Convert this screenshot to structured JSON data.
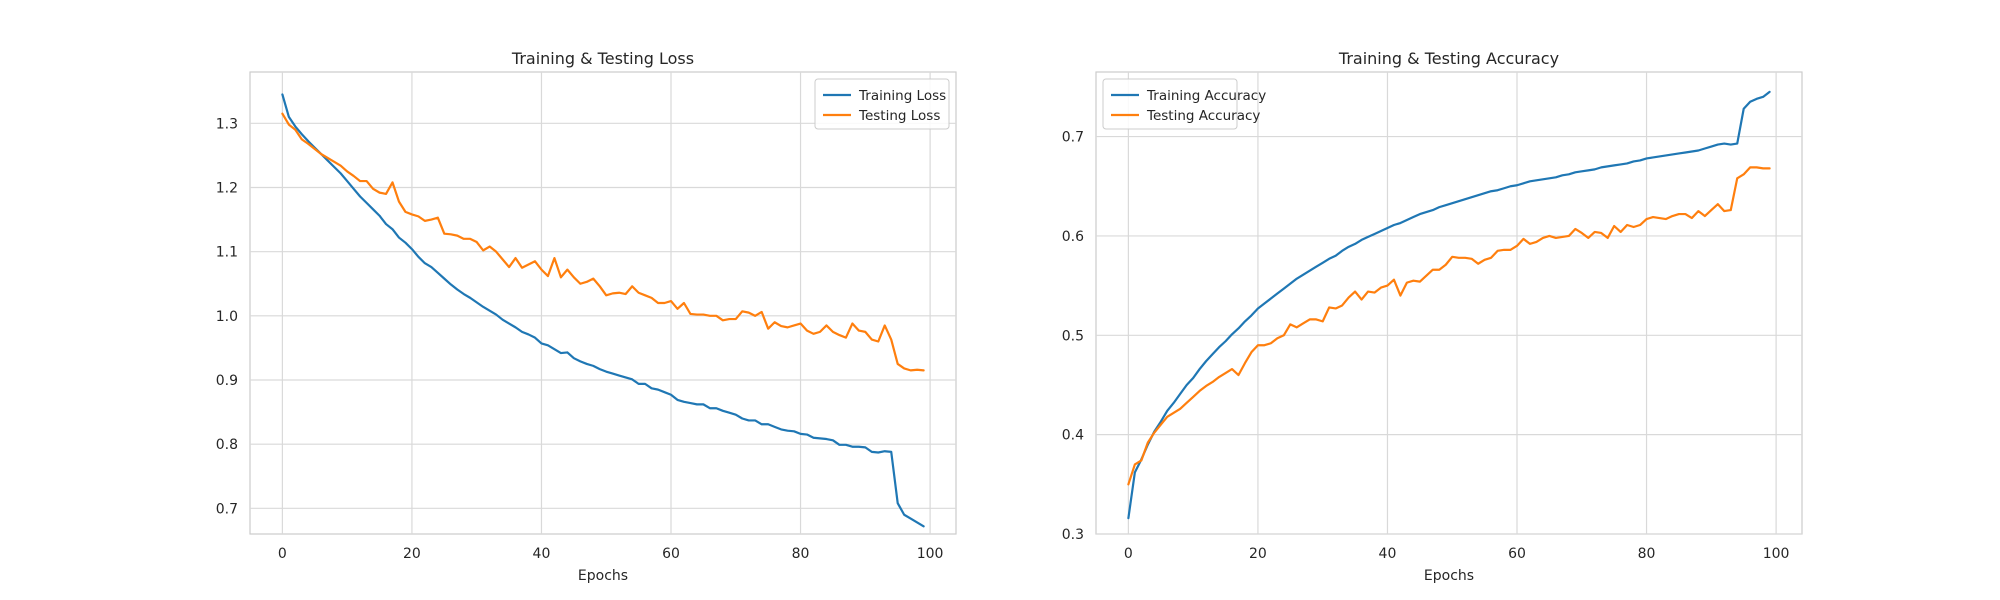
{
  "chart_data": [
    {
      "type": "line",
      "title": "Training & Testing Loss",
      "xlabel": "Epochs",
      "ylabel": "",
      "xlim": [
        -5,
        104
      ],
      "ylim": [
        0.66,
        1.38
      ],
      "xticks": [
        0,
        20,
        40,
        60,
        80,
        100
      ],
      "yticks": [
        0.7,
        0.8,
        0.9,
        1.0,
        1.1,
        1.2,
        1.3
      ],
      "grid": true,
      "legend_position": "top-right",
      "series": [
        {
          "name": "Training Loss",
          "color": "#1f77b4",
          "x": [
            0,
            1,
            2,
            3,
            4,
            5,
            6,
            7,
            8,
            9,
            10,
            11,
            12,
            13,
            14,
            15,
            16,
            17,
            18,
            19,
            20,
            21,
            22,
            23,
            24,
            25,
            26,
            27,
            28,
            29,
            30,
            31,
            32,
            33,
            34,
            35,
            36,
            37,
            38,
            39,
            40,
            41,
            42,
            43,
            44,
            45,
            46,
            47,
            48,
            49,
            50,
            51,
            52,
            53,
            54,
            55,
            56,
            57,
            58,
            59,
            60,
            61,
            62,
            63,
            64,
            65,
            66,
            67,
            68,
            69,
            70,
            71,
            72,
            73,
            74,
            75,
            76,
            77,
            78,
            79,
            80,
            81,
            82,
            83,
            84,
            85,
            86,
            87,
            88,
            89,
            90,
            91,
            92,
            93,
            94,
            95,
            96,
            97,
            98,
            99
          ],
          "values": [
            1.345,
            1.31,
            1.295,
            1.283,
            1.272,
            1.262,
            1.252,
            1.242,
            1.232,
            1.222,
            1.21,
            1.198,
            1.186,
            1.176,
            1.166,
            1.156,
            1.143,
            1.135,
            1.122,
            1.114,
            1.104,
            1.092,
            1.082,
            1.076,
            1.067,
            1.058,
            1.049,
            1.041,
            1.034,
            1.028,
            1.021,
            1.014,
            1.008,
            1.002,
            0.994,
            0.988,
            0.982,
            0.975,
            0.971,
            0.966,
            0.957,
            0.954,
            0.948,
            0.942,
            0.943,
            0.934,
            0.929,
            0.925,
            0.922,
            0.917,
            0.913,
            0.91,
            0.907,
            0.904,
            0.901,
            0.894,
            0.894,
            0.887,
            0.885,
            0.881,
            0.877,
            0.869,
            0.866,
            0.864,
            0.862,
            0.862,
            0.856,
            0.856,
            0.852,
            0.849,
            0.846,
            0.84,
            0.837,
            0.837,
            0.831,
            0.831,
            0.827,
            0.823,
            0.821,
            0.82,
            0.816,
            0.815,
            0.81,
            0.809,
            0.808,
            0.806,
            0.799,
            0.799,
            0.796,
            0.796,
            0.795,
            0.788,
            0.787,
            0.789,
            0.788,
            0.708,
            0.69,
            0.684,
            0.678,
            0.672
          ]
        },
        {
          "name": "Testing Loss",
          "color": "#ff7f0e",
          "x": [
            0,
            1,
            2,
            3,
            4,
            5,
            6,
            7,
            8,
            9,
            10,
            11,
            12,
            13,
            14,
            15,
            16,
            17,
            18,
            19,
            20,
            21,
            22,
            23,
            24,
            25,
            26,
            27,
            28,
            29,
            30,
            31,
            32,
            33,
            34,
            35,
            36,
            37,
            38,
            39,
            40,
            41,
            42,
            43,
            44,
            45,
            46,
            47,
            48,
            49,
            50,
            51,
            52,
            53,
            54,
            55,
            56,
            57,
            58,
            59,
            60,
            61,
            62,
            63,
            64,
            65,
            66,
            67,
            68,
            69,
            70,
            71,
            72,
            73,
            74,
            75,
            76,
            77,
            78,
            79,
            80,
            81,
            82,
            83,
            84,
            85,
            86,
            87,
            88,
            89,
            90,
            91,
            92,
            93,
            94,
            95,
            96,
            97,
            98,
            99
          ],
          "values": [
            1.315,
            1.298,
            1.29,
            1.275,
            1.268,
            1.26,
            1.252,
            1.246,
            1.24,
            1.234,
            1.225,
            1.218,
            1.21,
            1.21,
            1.198,
            1.192,
            1.19,
            1.208,
            1.178,
            1.162,
            1.158,
            1.155,
            1.148,
            1.15,
            1.153,
            1.128,
            1.127,
            1.125,
            1.12,
            1.12,
            1.115,
            1.102,
            1.108,
            1.1,
            1.088,
            1.076,
            1.09,
            1.075,
            1.08,
            1.085,
            1.072,
            1.062,
            1.09,
            1.06,
            1.072,
            1.06,
            1.05,
            1.053,
            1.058,
            1.046,
            1.032,
            1.035,
            1.036,
            1.034,
            1.046,
            1.036,
            1.032,
            1.028,
            1.02,
            1.02,
            1.023,
            1.011,
            1.02,
            1.003,
            1.002,
            1.002,
            1.0,
            1.0,
            0.993,
            0.995,
            0.995,
            1.007,
            1.005,
            1.0,
            1.006,
            0.98,
            0.99,
            0.984,
            0.982,
            0.985,
            0.988,
            0.977,
            0.972,
            0.975,
            0.985,
            0.975,
            0.97,
            0.966,
            0.988,
            0.977,
            0.975,
            0.963,
            0.96,
            0.985,
            0.963,
            0.925,
            0.918,
            0.915,
            0.916,
            0.915
          ]
        }
      ]
    },
    {
      "type": "line",
      "title": "Training & Testing Accuracy",
      "xlabel": "Epochs",
      "ylabel": "",
      "xlim": [
        -5,
        104
      ],
      "ylim": [
        0.3,
        0.765
      ],
      "xticks": [
        0,
        20,
        40,
        60,
        80,
        100
      ],
      "yticks": [
        0.3,
        0.4,
        0.5,
        0.6,
        0.7
      ],
      "grid": true,
      "legend_position": "top-left",
      "series": [
        {
          "name": "Training Accuracy",
          "color": "#1f77b4",
          "x": [
            0,
            1,
            2,
            3,
            4,
            5,
            6,
            7,
            8,
            9,
            10,
            11,
            12,
            13,
            14,
            15,
            16,
            17,
            18,
            19,
            20,
            21,
            22,
            23,
            24,
            25,
            26,
            27,
            28,
            29,
            30,
            31,
            32,
            33,
            34,
            35,
            36,
            37,
            38,
            39,
            40,
            41,
            42,
            43,
            44,
            45,
            46,
            47,
            48,
            49,
            50,
            51,
            52,
            53,
            54,
            55,
            56,
            57,
            58,
            59,
            60,
            61,
            62,
            63,
            64,
            65,
            66,
            67,
            68,
            69,
            70,
            71,
            72,
            73,
            74,
            75,
            76,
            77,
            78,
            79,
            80,
            81,
            82,
            83,
            84,
            85,
            86,
            87,
            88,
            89,
            90,
            91,
            92,
            93,
            94,
            95,
            96,
            97,
            98,
            99
          ],
          "values": [
            0.316,
            0.362,
            0.375,
            0.39,
            0.403,
            0.413,
            0.424,
            0.432,
            0.441,
            0.45,
            0.457,
            0.466,
            0.474,
            0.481,
            0.488,
            0.494,
            0.501,
            0.507,
            0.514,
            0.52,
            0.527,
            0.532,
            0.537,
            0.542,
            0.547,
            0.552,
            0.557,
            0.561,
            0.565,
            0.569,
            0.573,
            0.577,
            0.58,
            0.585,
            0.589,
            0.592,
            0.596,
            0.599,
            0.602,
            0.605,
            0.608,
            0.611,
            0.613,
            0.616,
            0.619,
            0.622,
            0.624,
            0.626,
            0.629,
            0.631,
            0.633,
            0.635,
            0.637,
            0.639,
            0.641,
            0.643,
            0.645,
            0.646,
            0.648,
            0.65,
            0.651,
            0.653,
            0.655,
            0.656,
            0.657,
            0.658,
            0.659,
            0.661,
            0.662,
            0.664,
            0.665,
            0.666,
            0.667,
            0.669,
            0.67,
            0.671,
            0.672,
            0.673,
            0.675,
            0.676,
            0.678,
            0.679,
            0.68,
            0.681,
            0.682,
            0.683,
            0.684,
            0.685,
            0.686,
            0.688,
            0.69,
            0.692,
            0.693,
            0.692,
            0.693,
            0.728,
            0.735,
            0.738,
            0.74,
            0.745
          ]
        },
        {
          "name": "Testing Accuracy",
          "color": "#ff7f0e",
          "x": [
            0,
            1,
            2,
            3,
            4,
            5,
            6,
            7,
            8,
            9,
            10,
            11,
            12,
            13,
            14,
            15,
            16,
            17,
            18,
            19,
            20,
            21,
            22,
            23,
            24,
            25,
            26,
            27,
            28,
            29,
            30,
            31,
            32,
            33,
            34,
            35,
            36,
            37,
            38,
            39,
            40,
            41,
            42,
            43,
            44,
            45,
            46,
            47,
            48,
            49,
            50,
            51,
            52,
            53,
            54,
            55,
            56,
            57,
            58,
            59,
            60,
            61,
            62,
            63,
            64,
            65,
            66,
            67,
            68,
            69,
            70,
            71,
            72,
            73,
            74,
            75,
            76,
            77,
            78,
            79,
            80,
            81,
            82,
            83,
            84,
            85,
            86,
            87,
            88,
            89,
            90,
            91,
            92,
            93,
            94,
            95,
            96,
            97,
            98,
            99
          ],
          "values": [
            0.35,
            0.37,
            0.374,
            0.392,
            0.402,
            0.41,
            0.418,
            0.422,
            0.426,
            0.432,
            0.438,
            0.444,
            0.449,
            0.453,
            0.458,
            0.462,
            0.466,
            0.46,
            0.472,
            0.483,
            0.49,
            0.49,
            0.492,
            0.497,
            0.5,
            0.511,
            0.508,
            0.512,
            0.516,
            0.516,
            0.514,
            0.528,
            0.527,
            0.53,
            0.538,
            0.544,
            0.536,
            0.544,
            0.543,
            0.548,
            0.55,
            0.556,
            0.54,
            0.553,
            0.555,
            0.554,
            0.56,
            0.566,
            0.566,
            0.571,
            0.579,
            0.578,
            0.578,
            0.577,
            0.572,
            0.576,
            0.578,
            0.585,
            0.586,
            0.586,
            0.59,
            0.597,
            0.592,
            0.594,
            0.598,
            0.6,
            0.598,
            0.599,
            0.6,
            0.607,
            0.603,
            0.598,
            0.604,
            0.603,
            0.598,
            0.61,
            0.604,
            0.611,
            0.609,
            0.611,
            0.617,
            0.619,
            0.618,
            0.617,
            0.62,
            0.622,
            0.622,
            0.618,
            0.625,
            0.62,
            0.626,
            0.632,
            0.625,
            0.626,
            0.658,
            0.662,
            0.669,
            0.669,
            0.668,
            0.668
          ]
        }
      ]
    }
  ]
}
